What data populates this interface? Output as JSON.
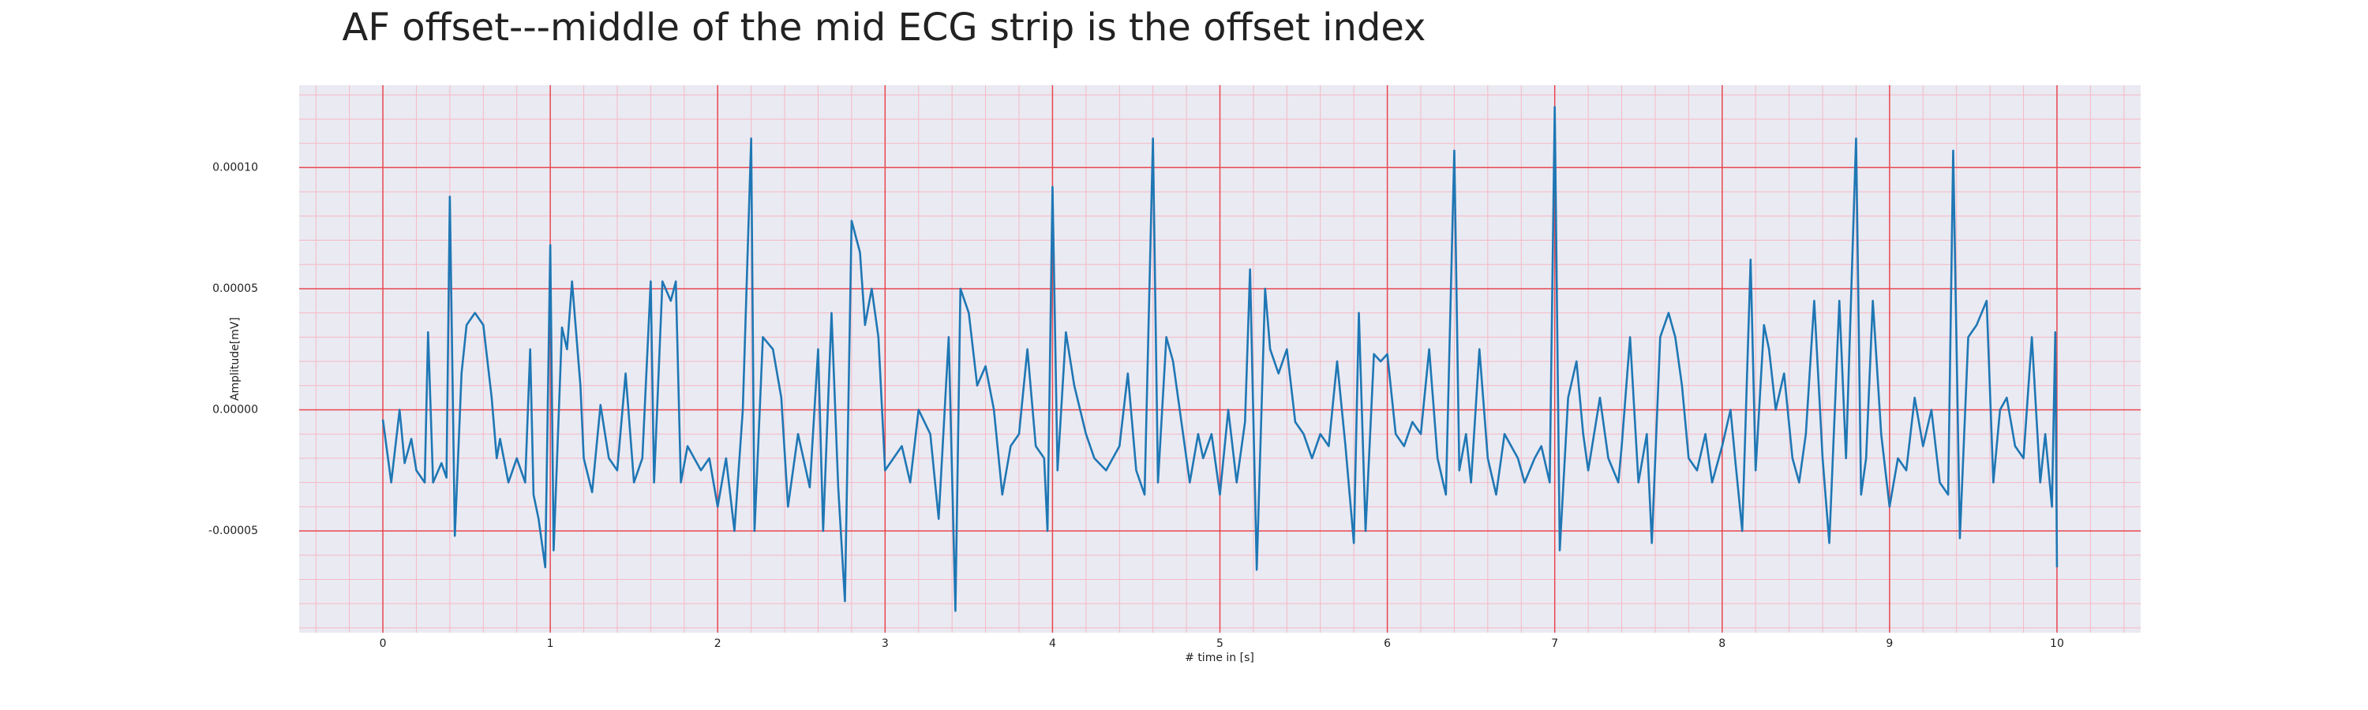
{
  "chart_data": {
    "type": "line",
    "title": "AF offset---middle of the mid ECG strip is the offset index",
    "xlabel": "# time in [s]",
    "ylabel": "Amplitude[mV]",
    "color": "#1f77b4",
    "grid": true,
    "minor_grid": true,
    "minor_divisions": 5,
    "xlim": [
      -0.5,
      10.5
    ],
    "ylim": [
      -9.2e-05,
      0.000134
    ],
    "xticks": [
      0,
      1,
      2,
      3,
      4,
      5,
      6,
      7,
      8,
      9,
      10
    ],
    "yticks": [
      {
        "value": -5e-05,
        "label": "-0.00005"
      },
      {
        "value": 0,
        "label": "0.00000"
      },
      {
        "value": 5e-05,
        "label": "0.00005"
      },
      {
        "value": 0.0001,
        "label": "0.00010"
      }
    ],
    "x": [
      0,
      0.05,
      0.1,
      0.13,
      0.17,
      0.2,
      0.25,
      0.27,
      0.3,
      0.35,
      0.38,
      0.4,
      0.43,
      0.47,
      0.5,
      0.55,
      0.6,
      0.65,
      0.68,
      0.7,
      0.75,
      0.8,
      0.85,
      0.88,
      0.9,
      0.93,
      0.97,
      1.0,
      1.02,
      1.07,
      1.1,
      1.13,
      1.18,
      1.2,
      1.25,
      1.3,
      1.35,
      1.4,
      1.45,
      1.5,
      1.55,
      1.6,
      1.62,
      1.67,
      1.72,
      1.75,
      1.78,
      1.82,
      1.9,
      1.95,
      2.0,
      2.05,
      2.1,
      2.15,
      2.2,
      2.22,
      2.27,
      2.33,
      2.38,
      2.42,
      2.48,
      2.55,
      2.6,
      2.63,
      2.68,
      2.72,
      2.76,
      2.8,
      2.85,
      2.88,
      2.92,
      2.96,
      3.0,
      3.05,
      3.1,
      3.15,
      3.2,
      3.27,
      3.32,
      3.38,
      3.42,
      3.45,
      3.5,
      3.55,
      3.6,
      3.65,
      3.7,
      3.75,
      3.8,
      3.85,
      3.9,
      3.95,
      3.97,
      4.0,
      4.03,
      4.08,
      4.13,
      4.2,
      4.25,
      4.32,
      4.4,
      4.45,
      4.5,
      4.55,
      4.6,
      4.63,
      4.68,
      4.72,
      4.78,
      4.82,
      4.87,
      4.9,
      4.95,
      5.0,
      5.05,
      5.1,
      5.15,
      5.18,
      5.22,
      5.27,
      5.3,
      5.35,
      5.4,
      5.45,
      5.5,
      5.55,
      5.6,
      5.65,
      5.7,
      5.75,
      5.8,
      5.83,
      5.87,
      5.92,
      5.96,
      6.0,
      6.05,
      6.1,
      6.15,
      6.2,
      6.25,
      6.3,
      6.35,
      6.4,
      6.43,
      6.47,
      6.5,
      6.55,
      6.6,
      6.65,
      6.7,
      6.78,
      6.82,
      6.88,
      6.92,
      6.97,
      7.0,
      7.03,
      7.08,
      7.13,
      7.17,
      7.2,
      7.27,
      7.32,
      7.38,
      7.4,
      7.45,
      7.5,
      7.55,
      7.58,
      7.63,
      7.68,
      7.72,
      7.76,
      7.8,
      7.85,
      7.9,
      7.94,
      8.0,
      8.05,
      8.08,
      8.12,
      8.17,
      8.2,
      8.25,
      8.28,
      8.32,
      8.37,
      8.42,
      8.46,
      8.5,
      8.55,
      8.6,
      8.64,
      8.7,
      8.74,
      8.8,
      8.83,
      8.86,
      8.9,
      8.95,
      9.0,
      9.05,
      9.1,
      9.15,
      9.2,
      9.25,
      9.3,
      9.35,
      9.38,
      9.42,
      9.47,
      9.52,
      9.58,
      9.62,
      9.66,
      9.7,
      9.75,
      9.8,
      9.85,
      9.9,
      9.93,
      9.97,
      9.99,
      10.0
    ],
    "values": [
      -4e-06,
      -3e-05,
      0.0,
      -2.2e-05,
      -1.2e-05,
      -2.5e-05,
      -3e-05,
      3.2e-05,
      -3e-05,
      -2.2e-05,
      -2.8e-05,
      8.8e-05,
      -5.2e-05,
      1.5e-05,
      3.5e-05,
      4e-05,
      3.5e-05,
      5e-06,
      -2e-05,
      -1.2e-05,
      -3e-05,
      -2e-05,
      -3e-05,
      2.5e-05,
      -3.5e-05,
      -4.5e-05,
      -6.5e-05,
      6.8e-05,
      -5.8e-05,
      3.4e-05,
      2.5e-05,
      5.3e-05,
      1e-05,
      -2e-05,
      -3.4e-05,
      2e-06,
      -2e-05,
      -2.5e-05,
      1.5e-05,
      -3e-05,
      -2e-05,
      5.3e-05,
      -3e-05,
      5.3e-05,
      4.5e-05,
      5.3e-05,
      -3e-05,
      -1.5e-05,
      -2.5e-05,
      -2e-05,
      -4e-05,
      -2e-05,
      -5e-05,
      0.0,
      0.000112,
      -5e-05,
      3e-05,
      2.5e-05,
      5e-06,
      -4e-05,
      -1e-05,
      -3.2e-05,
      2.5e-05,
      -5e-05,
      4e-05,
      -3.2e-05,
      -7.9e-05,
      7.8e-05,
      6.5e-05,
      3.5e-05,
      5e-05,
      3e-05,
      -2.5e-05,
      -2e-05,
      -1.5e-05,
      -3e-05,
      0.0,
      -1e-05,
      -4.5e-05,
      3e-05,
      -8.3e-05,
      5e-05,
      4e-05,
      1e-05,
      1.8e-05,
      0.0,
      -3.5e-05,
      -1.5e-05,
      -1e-05,
      2.5e-05,
      -1.5e-05,
      -2e-05,
      -5e-05,
      9.2e-05,
      -2.5e-05,
      3.2e-05,
      1e-05,
      -1e-05,
      -2e-05,
      -2.5e-05,
      -1.5e-05,
      1.5e-05,
      -2.5e-05,
      -3.5e-05,
      0.000112,
      -3e-05,
      3e-05,
      2e-05,
      -1e-05,
      -3e-05,
      -1e-05,
      -2e-05,
      -1e-05,
      -3.5e-05,
      0.0,
      -3e-05,
      -5e-06,
      5.8e-05,
      -6.6e-05,
      5e-05,
      2.5e-05,
      1.5e-05,
      2.5e-05,
      -5e-06,
      -1e-05,
      -2e-05,
      -1e-05,
      -1.5e-05,
      2e-05,
      -1.5e-05,
      -5.5e-05,
      4e-05,
      -5e-05,
      2.3e-05,
      2e-05,
      2.3e-05,
      -1e-05,
      -1.5e-05,
      -5e-06,
      -1e-05,
      2.5e-05,
      -2e-05,
      -3.5e-05,
      0.000107,
      -2.5e-05,
      -1e-05,
      -3e-05,
      2.5e-05,
      -2e-05,
      -3.5e-05,
      -1e-05,
      -2e-05,
      -3e-05,
      -2e-05,
      -1.5e-05,
      -3e-05,
      0.000125,
      -5.8e-05,
      5e-06,
      2e-05,
      -1e-05,
      -2.5e-05,
      5e-06,
      -2e-05,
      -3e-05,
      -1.5e-05,
      3e-05,
      -3e-05,
      -1e-05,
      -5.5e-05,
      3e-05,
      4e-05,
      3e-05,
      1e-05,
      -2e-05,
      -2.5e-05,
      -1e-05,
      -3e-05,
      -1.5e-05,
      0.0,
      -2.2e-05,
      -5e-05,
      6.2e-05,
      -2.5e-05,
      3.5e-05,
      2.5e-05,
      0.0,
      1.5e-05,
      -2e-05,
      -3e-05,
      -1e-05,
      4.5e-05,
      -2e-05,
      -5.5e-05,
      4.5e-05,
      -2e-05,
      0.000112,
      -3.5e-05,
      -2e-05,
      4.5e-05,
      -1e-05,
      -4e-05,
      -2e-05,
      -2.5e-05,
      5e-06,
      -1.5e-05,
      0.0,
      -3e-05,
      -3.5e-05,
      0.000107,
      -5.3e-05,
      3e-05,
      3.5e-05,
      4.5e-05,
      -3e-05,
      0.0,
      5e-06,
      -1.5e-05,
      -2e-05,
      3e-05,
      -3e-05,
      -1e-05,
      -4e-05,
      3.2e-05,
      -6.5e-05
    ]
  }
}
